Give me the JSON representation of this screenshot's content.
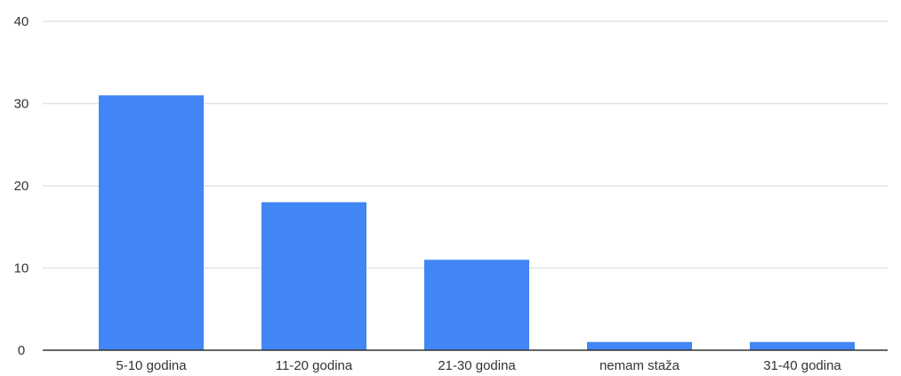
{
  "chart_data": {
    "type": "bar",
    "categories": [
      "5-10 godina",
      "11-20 godina",
      "21-30 godina",
      "nemam staža",
      "31-40 godina"
    ],
    "values": [
      31,
      18,
      11,
      1,
      1
    ],
    "ylim": [
      0,
      40
    ],
    "yticks": [
      0,
      10,
      20,
      30,
      40
    ],
    "grid": true,
    "legend": "none",
    "bar_color": "#4285f4",
    "title": "",
    "xlabel": "",
    "ylabel": ""
  }
}
